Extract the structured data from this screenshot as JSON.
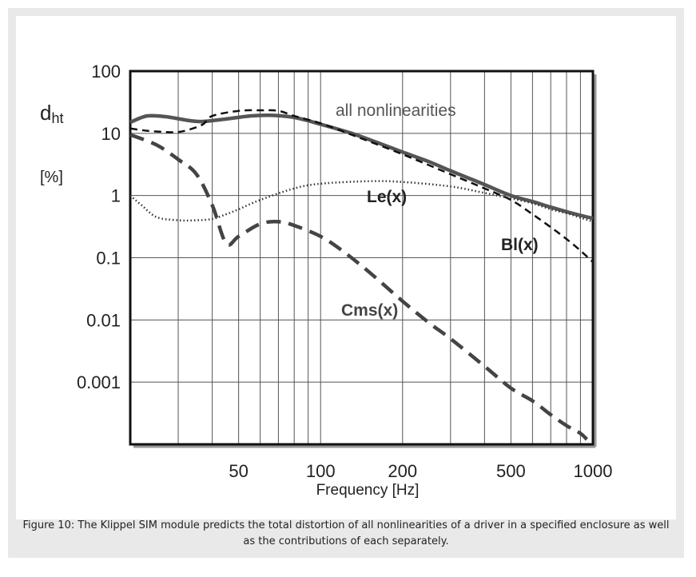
{
  "figure": {
    "caption": "Figure 10: The Klippel SIM module predicts the total distortion of all nonlinearities of a driver in a specified enclosure as well as the contributions of each separately."
  },
  "chart_data": {
    "type": "line",
    "ylabel_main": "dht",
    "ylabel_sub": "ht",
    "yunit": "[%]",
    "xlabel": "Frequency  [Hz]",
    "xscale": "log",
    "yscale": "log",
    "xlim": [
      20,
      1000
    ],
    "ylim": [
      0.0001,
      100
    ],
    "grid": true,
    "x_ticks": [
      {
        "value": 50,
        "label": "50"
      },
      {
        "value": 100,
        "label": "100"
      },
      {
        "value": 200,
        "label": "200"
      },
      {
        "value": 500,
        "label": "500"
      },
      {
        "value": 1000,
        "label": "1000"
      }
    ],
    "y_ticks": [
      {
        "value": 100,
        "label": "100"
      },
      {
        "value": 10,
        "label": "10"
      },
      {
        "value": 1,
        "label": "1"
      },
      {
        "value": 0.1,
        "label": "0.1"
      },
      {
        "value": 0.01,
        "label": "0.01"
      },
      {
        "value": 0.001,
        "label": "0.001"
      }
    ],
    "series": [
      {
        "name": "all nonlinearities",
        "style": "solid",
        "x": [
          20,
          23,
          27,
          33,
          37,
          45,
          55,
          65,
          80,
          100,
          130,
          160,
          200,
          250,
          300,
          350,
          400,
          500,
          600,
          700,
          800,
          900,
          1000
        ],
        "y": [
          15,
          19,
          18.5,
          16,
          15.5,
          17,
          19,
          19.5,
          18,
          14,
          10,
          7.2,
          5,
          3.5,
          2.5,
          1.9,
          1.5,
          1.0,
          0.8,
          0.65,
          0.55,
          0.48,
          0.43
        ]
      },
      {
        "name": "Bl(x)",
        "style": "dashed",
        "x": [
          20,
          23,
          27,
          30,
          33,
          37,
          40,
          50,
          60,
          70,
          80,
          100,
          130,
          200,
          300,
          400,
          500,
          600,
          700,
          800,
          900,
          1000
        ],
        "y": [
          12,
          11,
          10.5,
          10.5,
          11.5,
          14,
          19,
          23,
          23.5,
          23,
          19,
          14.5,
          9.5,
          4.6,
          2.2,
          1.3,
          0.85,
          0.5,
          0.31,
          0.2,
          0.13,
          0.085
        ]
      },
      {
        "name": "Le(x)",
        "style": "dotted",
        "x": [
          20,
          22,
          25,
          30,
          35,
          40,
          45,
          50,
          60,
          80,
          100,
          150,
          200,
          300,
          400,
          500,
          600,
          700,
          800,
          900,
          1000
        ],
        "y": [
          1,
          0.7,
          0.45,
          0.4,
          0.4,
          0.42,
          0.5,
          0.6,
          0.85,
          1.3,
          1.55,
          1.7,
          1.65,
          1.4,
          1.1,
          0.9,
          0.75,
          0.6,
          0.52,
          0.44,
          0.38
        ]
      },
      {
        "name": "Cms(x)",
        "style": "dashed",
        "x": [
          20,
          25,
          30,
          35,
          40,
          45,
          50,
          60,
          70,
          80,
          100,
          120,
          150,
          200,
          250,
          300,
          400,
          500,
          600,
          700,
          800,
          900,
          950
        ],
        "y": [
          9.5,
          6.5,
          3.8,
          2.2,
          0.7,
          0.17,
          0.22,
          0.35,
          0.38,
          0.33,
          0.22,
          0.13,
          0.06,
          0.02,
          0.009,
          0.005,
          0.0018,
          0.0008,
          0.0005,
          0.0003,
          0.0002,
          0.00015,
          0.00012
        ]
      }
    ],
    "annotations": [
      {
        "text": "all nonlinearities",
        "series": "all nonlinearities"
      },
      {
        "text": "Le(x)",
        "series": "Le(x)"
      },
      {
        "text": "Bl(x)",
        "series": "Bl(x)"
      },
      {
        "text": "Cms(x)",
        "series": "Cms(x)"
      }
    ]
  }
}
